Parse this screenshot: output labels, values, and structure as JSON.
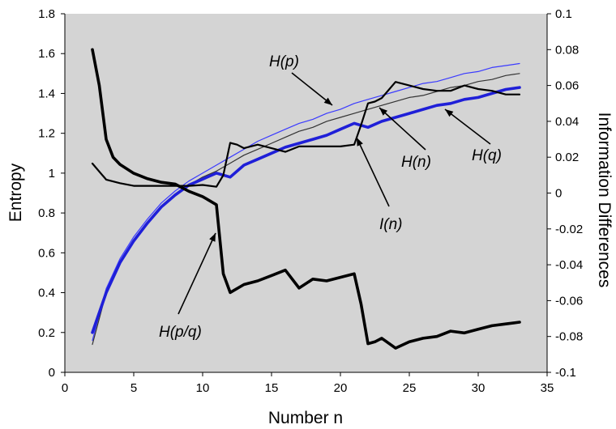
{
  "chart_data": {
    "type": "line",
    "title": "",
    "xlabel": "Number n",
    "ylabel": "Entropy",
    "y2label": "Information Differences",
    "xlim": [
      0,
      35
    ],
    "ylim": [
      0,
      1.8
    ],
    "y2lim": [
      -0.1,
      0.1
    ],
    "x_ticks": [
      "0",
      "5",
      "10",
      "15",
      "20",
      "25",
      "30",
      "35"
    ],
    "y_ticks": [
      "0",
      "0.2",
      "0.4",
      "0.6",
      "0.8",
      "1",
      "1.2",
      "1.4",
      "1.6",
      "1.8"
    ],
    "y2_ticks": [
      "-0.1",
      "-0.08",
      "-0.06",
      "-0.04",
      "-0.02",
      "0",
      "0.02",
      "0.04",
      "0.06",
      "0.08",
      "0.1"
    ],
    "plot_background": "#d4d4d4",
    "grid": false,
    "legend": "none",
    "series": [
      {
        "name": "H(p)",
        "axis": "left",
        "color": "#3a3aff",
        "width": "thin",
        "x": [
          2,
          3,
          4,
          5,
          6,
          7,
          8,
          9,
          10,
          11,
          12,
          13,
          14,
          15,
          16,
          17,
          18,
          19,
          20,
          21,
          22,
          23,
          24,
          25,
          26,
          27,
          28,
          29,
          30,
          31,
          32,
          33
        ],
        "y": [
          0.16,
          0.42,
          0.57,
          0.68,
          0.77,
          0.85,
          0.91,
          0.96,
          1.0,
          1.04,
          1.08,
          1.12,
          1.16,
          1.19,
          1.22,
          1.25,
          1.27,
          1.3,
          1.32,
          1.35,
          1.37,
          1.39,
          1.41,
          1.43,
          1.45,
          1.46,
          1.48,
          1.5,
          1.51,
          1.53,
          1.54,
          1.55
        ]
      },
      {
        "name": "H(n)",
        "axis": "left",
        "color": "#333333",
        "width": "thin",
        "x": [
          2,
          3,
          4,
          5,
          6,
          7,
          8,
          9,
          10,
          11,
          12,
          13,
          14,
          15,
          16,
          17,
          18,
          19,
          20,
          21,
          22,
          23,
          24,
          25,
          26,
          27,
          28,
          29,
          30,
          31,
          32,
          33
        ],
        "y": [
          0.14,
          0.4,
          0.55,
          0.66,
          0.75,
          0.83,
          0.89,
          0.94,
          0.98,
          1.01,
          1.05,
          1.09,
          1.12,
          1.15,
          1.18,
          1.21,
          1.23,
          1.26,
          1.28,
          1.3,
          1.32,
          1.34,
          1.36,
          1.38,
          1.39,
          1.41,
          1.43,
          1.44,
          1.46,
          1.47,
          1.49,
          1.5
        ]
      },
      {
        "name": "H(q)",
        "axis": "left",
        "color": "#1f1fd8",
        "width": "thick",
        "x": [
          2,
          3,
          4,
          5,
          6,
          7,
          8,
          9,
          10,
          11,
          12,
          13,
          14,
          15,
          16,
          17,
          18,
          19,
          20,
          21,
          22,
          23,
          24,
          25,
          26,
          27,
          28,
          29,
          30,
          31,
          32,
          33
        ],
        "y": [
          0.2,
          0.4,
          0.55,
          0.66,
          0.75,
          0.83,
          0.89,
          0.94,
          0.97,
          1.0,
          0.98,
          1.04,
          1.07,
          1.1,
          1.13,
          1.15,
          1.17,
          1.19,
          1.22,
          1.25,
          1.23,
          1.26,
          1.28,
          1.3,
          1.32,
          1.34,
          1.35,
          1.37,
          1.38,
          1.4,
          1.42,
          1.43
        ]
      },
      {
        "name": "I(n)",
        "axis": "right",
        "color": "#000000",
        "width": "medium",
        "x": [
          2,
          3,
          4,
          5,
          6,
          7,
          8,
          9,
          10,
          11,
          11.5,
          12,
          12.5,
          13,
          14,
          15,
          16,
          17,
          18,
          19,
          20,
          21,
          21.5,
          22,
          22.5,
          23,
          24,
          25,
          26,
          27,
          28,
          29,
          30,
          31,
          32,
          33
        ],
        "y": [
          0.0165,
          0.0075,
          0.0055,
          0.004,
          0.004,
          0.004,
          0.004,
          0.004,
          0.0045,
          0.0035,
          0.01,
          0.028,
          0.027,
          0.025,
          0.027,
          0.025,
          0.023,
          0.026,
          0.026,
          0.026,
          0.026,
          0.027,
          0.038,
          0.05,
          0.051,
          0.053,
          0.062,
          0.06,
          0.058,
          0.057,
          0.057,
          0.06,
          0.058,
          0.057,
          0.055,
          0.055
        ]
      },
      {
        "name": "H(p/q)",
        "axis": "right",
        "color": "#000000",
        "width": "thick",
        "x": [
          2,
          2.5,
          3,
          3.5,
          4,
          5,
          6,
          7,
          8,
          9,
          10,
          11,
          11.5,
          12,
          13,
          14,
          15,
          16,
          17,
          18,
          19,
          20,
          21,
          21.5,
          22,
          22.5,
          23,
          24,
          25,
          26,
          27,
          28,
          29,
          30,
          31,
          32,
          33
        ],
        "y": [
          0.08,
          0.06,
          0.03,
          0.02,
          0.016,
          0.011,
          0.008,
          0.006,
          0.005,
          0.001,
          -0.002,
          -0.0065,
          -0.045,
          -0.0555,
          -0.051,
          -0.049,
          -0.046,
          -0.043,
          -0.053,
          -0.048,
          -0.049,
          -0.047,
          -0.045,
          -0.062,
          -0.084,
          -0.083,
          -0.081,
          -0.0865,
          -0.083,
          -0.081,
          -0.08,
          -0.077,
          -0.078,
          -0.076,
          -0.074,
          -0.073,
          -0.072
        ]
      }
    ],
    "annotations": [
      {
        "label": "H(p)",
        "target_series": "H(p)"
      },
      {
        "label": "H(n)",
        "target_series": "H(n)"
      },
      {
        "label": "H(q)",
        "target_series": "H(q)"
      },
      {
        "label": "I(n)",
        "target_series": "I(n)"
      },
      {
        "label": "H(p/q)",
        "target_series": "H(p/q)"
      }
    ]
  }
}
